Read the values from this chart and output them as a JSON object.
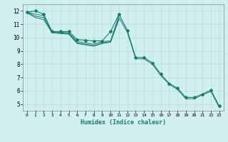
{
  "title": "",
  "xlabel": "Humidex (Indice chaleur)",
  "ylabel": "",
  "bg_color": "#cff0ee",
  "grid_color": "#b8ddd9",
  "line_color": "#1a7a6e",
  "xlim": [
    -0.5,
    23.5
  ],
  "ylim": [
    4.5,
    12.5
  ],
  "xticks": [
    0,
    1,
    2,
    3,
    4,
    5,
    6,
    7,
    8,
    9,
    10,
    11,
    12,
    13,
    14,
    15,
    16,
    17,
    18,
    19,
    20,
    21,
    22,
    23
  ],
  "yticks": [
    5,
    6,
    7,
    8,
    9,
    10,
    11,
    12
  ],
  "series": [
    {
      "x": [
        0,
        1,
        2,
        3,
        4,
        5,
        6,
        7,
        8,
        9,
        10,
        11,
        12,
        13,
        14,
        15,
        16,
        17,
        18,
        19,
        20,
        21,
        22,
        23
      ],
      "y": [
        11.9,
        12.0,
        11.75,
        10.45,
        10.45,
        10.45,
        9.85,
        9.8,
        9.75,
        9.75,
        10.45,
        11.75,
        10.55,
        8.5,
        8.5,
        8.1,
        7.25,
        6.55,
        6.2,
        5.5,
        5.5,
        5.75,
        6.05,
        4.85
      ],
      "marker": true
    },
    {
      "x": [
        0,
        1,
        2,
        3,
        4,
        5,
        6,
        7,
        8,
        9,
        10,
        11,
        12,
        13,
        14,
        15,
        16,
        17,
        18,
        19,
        20,
        21,
        22,
        23
      ],
      "y": [
        11.9,
        11.75,
        11.65,
        10.45,
        10.4,
        10.35,
        9.7,
        9.6,
        9.5,
        9.7,
        9.75,
        11.65,
        null,
        null,
        null,
        null,
        null,
        null,
        null,
        null,
        null,
        null,
        null,
        null
      ],
      "marker": false
    },
    {
      "x": [
        0,
        1,
        2,
        3,
        4,
        5,
        6,
        7,
        8,
        9,
        10,
        11,
        12,
        13,
        14,
        15,
        16,
        17,
        18,
        19,
        20,
        21,
        22,
        23
      ],
      "y": [
        11.9,
        11.6,
        11.5,
        10.4,
        10.35,
        10.3,
        9.6,
        9.5,
        9.4,
        9.6,
        9.7,
        11.5,
        10.4,
        8.4,
        8.4,
        8.0,
        7.15,
        6.5,
        6.1,
        5.4,
        5.4,
        5.7,
        5.95,
        4.75
      ],
      "marker": false
    },
    {
      "x": [
        0,
        1,
        2,
        3,
        4,
        5,
        6,
        7,
        8,
        9,
        10,
        11,
        12,
        13,
        14,
        15,
        16,
        17,
        18,
        19,
        20,
        21,
        22,
        23
      ],
      "y": [
        11.85,
        11.5,
        11.35,
        10.35,
        10.3,
        10.25,
        9.55,
        9.45,
        9.35,
        9.55,
        9.65,
        11.35,
        null,
        null,
        null,
        null,
        null,
        null,
        null,
        null,
        null,
        null,
        null,
        null
      ],
      "marker": false
    }
  ]
}
